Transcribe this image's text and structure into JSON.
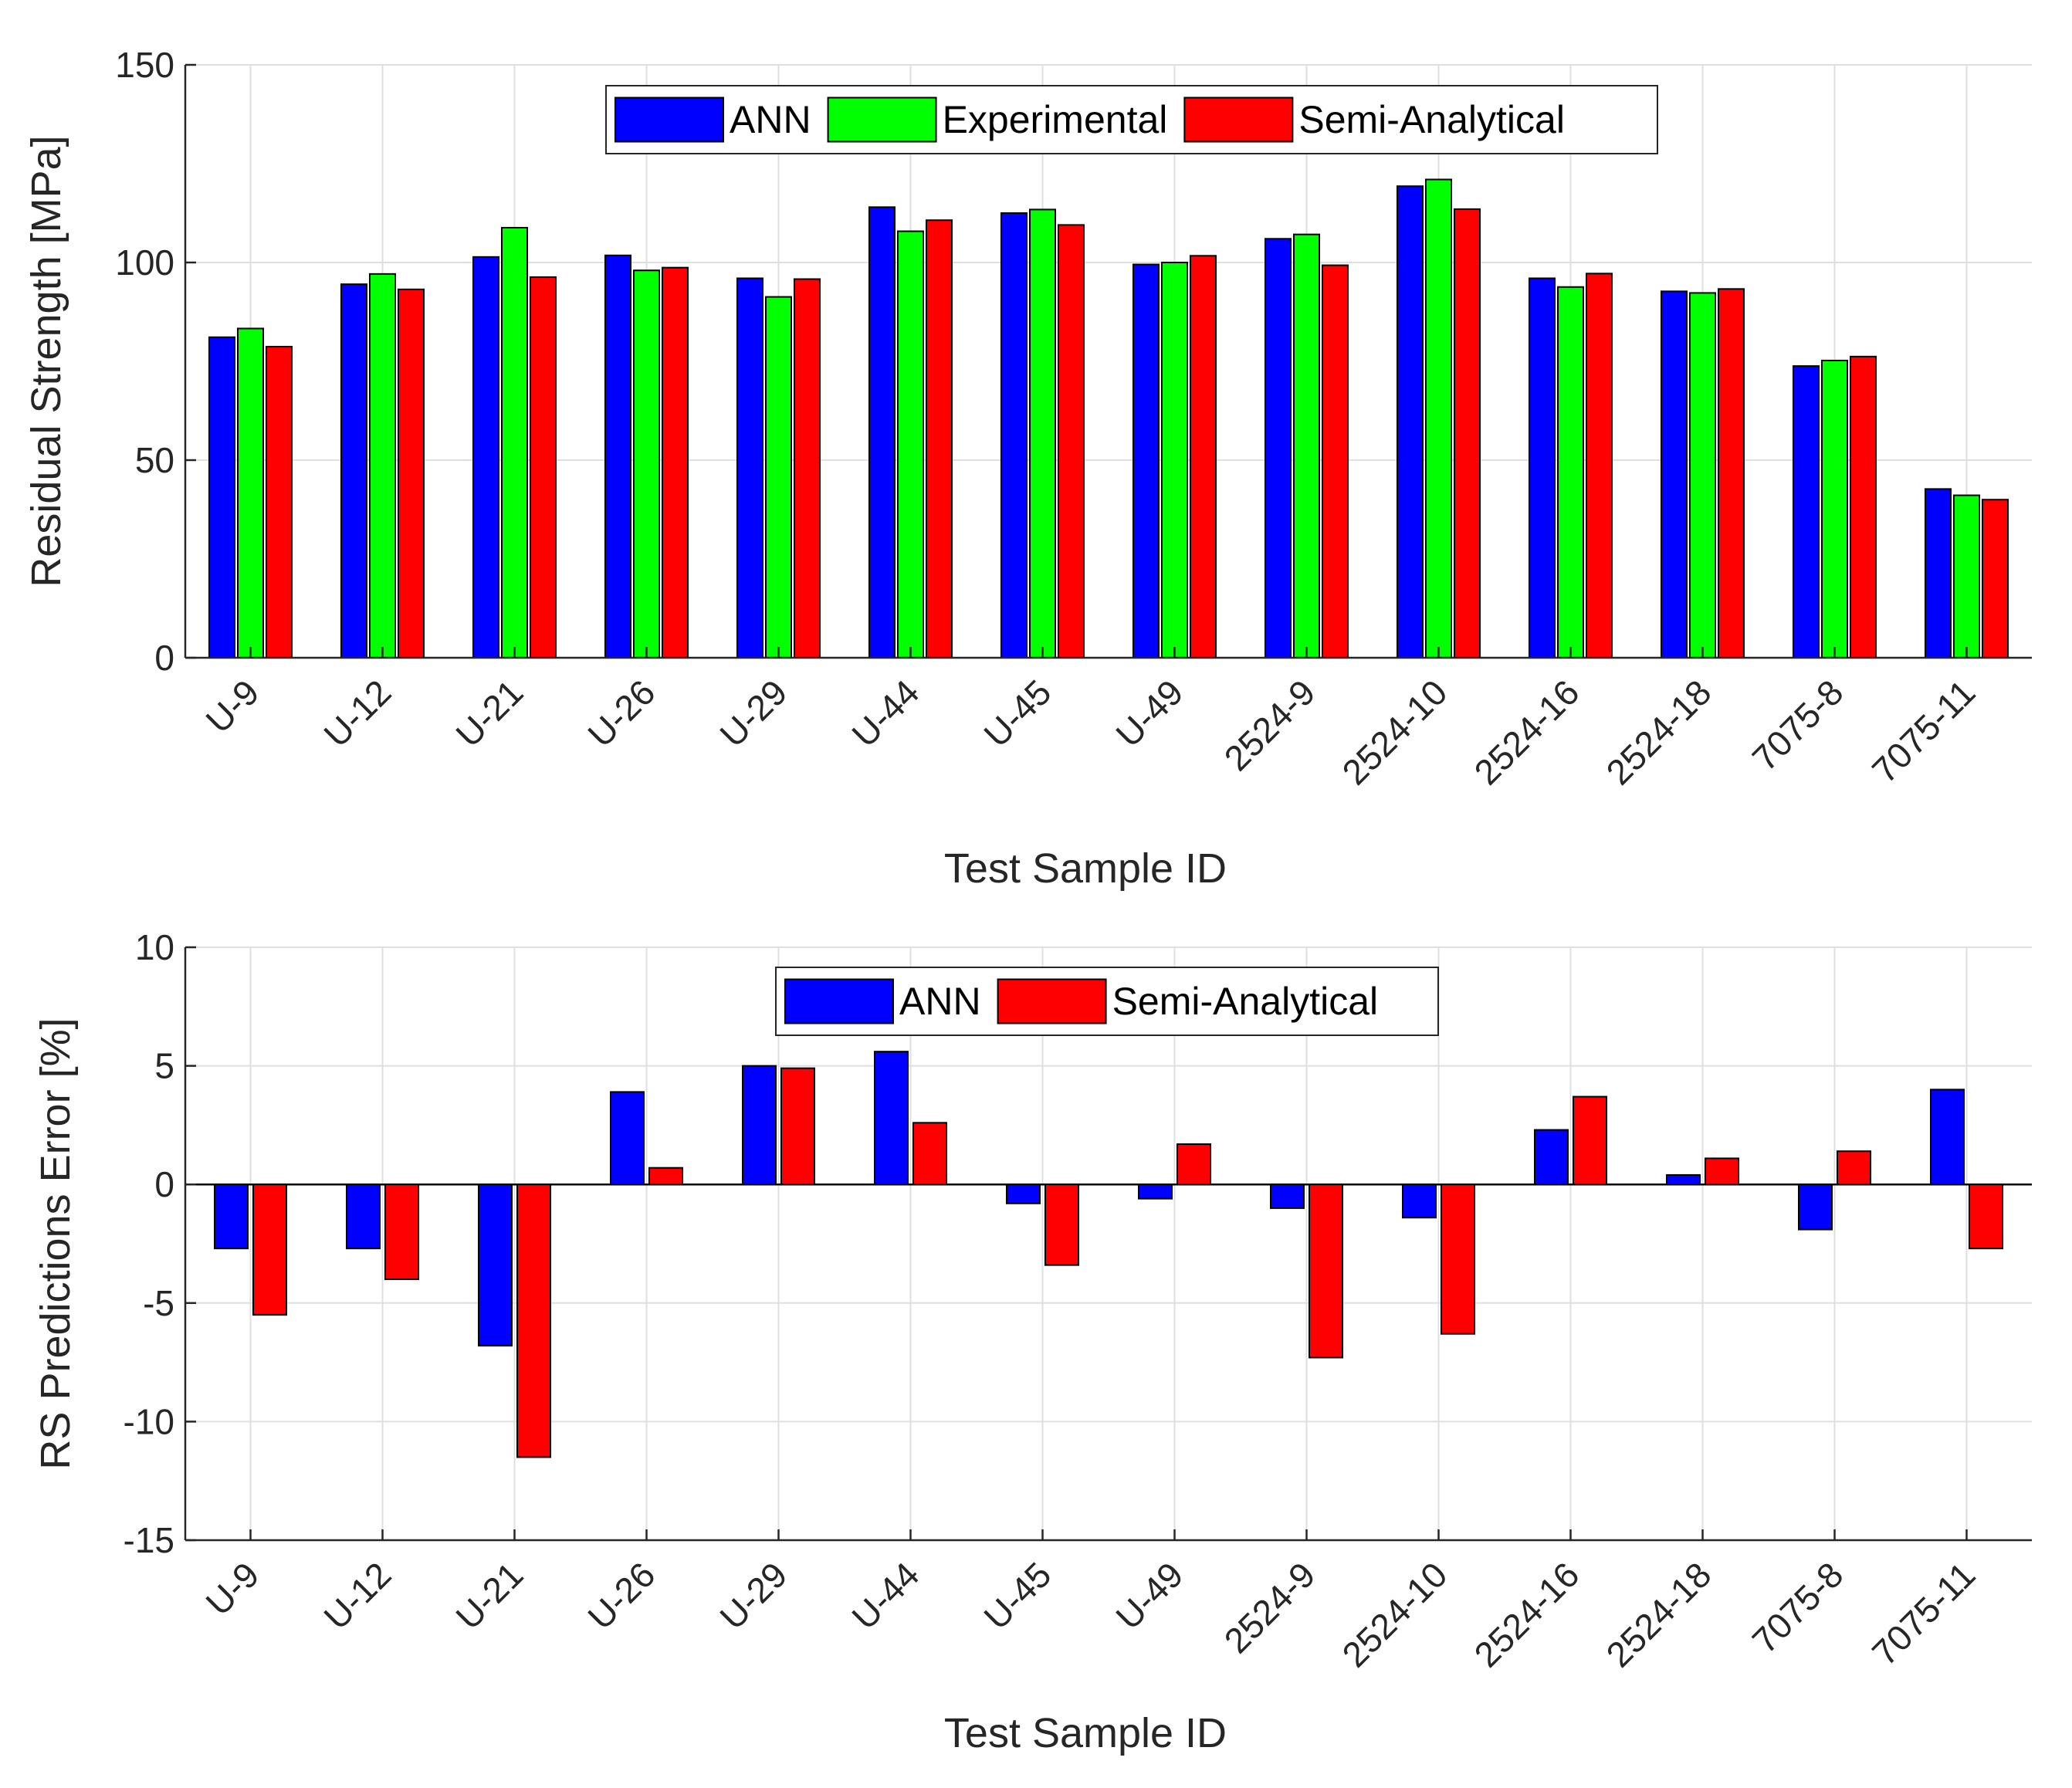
{
  "chart_data": [
    {
      "type": "bar",
      "title": "",
      "xlabel": "Test Sample ID",
      "ylabel": "Residual Strength [MPa]",
      "ylim": [
        0,
        150
      ],
      "yticks": [
        0,
        50,
        100,
        150
      ],
      "grid": true,
      "legend_position": "top-center",
      "categories": [
        "U-9",
        "U-12",
        "U-21",
        "U-26",
        "U-29",
        "U-44",
        "U-45",
        "U-49",
        "2524-9",
        "2524-10",
        "2524-16",
        "2524-18",
        "7075-8",
        "7075-11"
      ],
      "series": [
        {
          "name": "ANN",
          "color": "#0000ff",
          "values": [
            81.1,
            94.5,
            101.4,
            101.8,
            96.0,
            114.0,
            112.5,
            99.5,
            106.0,
            119.3,
            96.0,
            92.7,
            73.8,
            42.7
          ]
        },
        {
          "name": "Experimental",
          "color": "#00ff00",
          "values": [
            83.3,
            97.1,
            108.8,
            98.0,
            91.3,
            107.9,
            113.4,
            100.0,
            107.1,
            121.0,
            93.8,
            92.3,
            75.2,
            41.1
          ]
        },
        {
          "name": "Semi-Analytical",
          "color": "#ff0000",
          "values": [
            78.7,
            93.2,
            96.3,
            98.7,
            95.8,
            110.7,
            109.5,
            101.7,
            99.3,
            113.5,
            97.2,
            93.3,
            76.2,
            40.0
          ]
        }
      ]
    },
    {
      "type": "bar",
      "title": "",
      "xlabel": "Test Sample ID",
      "ylabel": "RS Predictions Error [%]",
      "ylim": [
        -15,
        10
      ],
      "yticks": [
        -15,
        -10,
        -5,
        0,
        5,
        10
      ],
      "grid": true,
      "legend_position": "top-center",
      "categories": [
        "U-9",
        "U-12",
        "U-21",
        "U-26",
        "U-29",
        "U-44",
        "U-45",
        "U-49",
        "2524-9",
        "2524-10",
        "2524-16",
        "2524-18",
        "7075-8",
        "7075-11"
      ],
      "series": [
        {
          "name": "ANN",
          "color": "#0000ff",
          "values": [
            -2.7,
            -2.7,
            -6.8,
            3.9,
            5.0,
            5.6,
            -0.8,
            -0.6,
            -1.0,
            -1.4,
            2.3,
            0.4,
            -1.9,
            4.0
          ]
        },
        {
          "name": "Semi-Analytical",
          "color": "#ff0000",
          "values": [
            -5.5,
            -4.0,
            -11.5,
            0.7,
            4.9,
            2.6,
            -3.4,
            1.7,
            -7.3,
            -6.3,
            3.7,
            1.1,
            1.4,
            -2.7
          ]
        }
      ]
    }
  ]
}
